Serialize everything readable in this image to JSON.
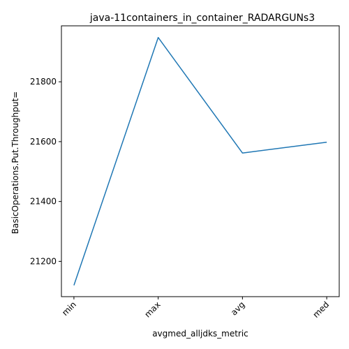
{
  "chart_data": {
    "type": "line",
    "title": "java-11containers_in_container_RADARGUNs3",
    "xlabel": "avgmed_alljdks_metric",
    "ylabel": "BasicOperations.Put.Throughput=",
    "categories": [
      "min",
      "max",
      "avg",
      "med"
    ],
    "series": [
      {
        "values": [
          21120,
          21948,
          21562,
          21598
        ],
        "color": "#1f77b4"
      }
    ],
    "ylim": [
      21082,
      21987
    ],
    "yticks": [
      21200,
      21400,
      21600,
      21800
    ],
    "grid": false,
    "legend": "none"
  }
}
